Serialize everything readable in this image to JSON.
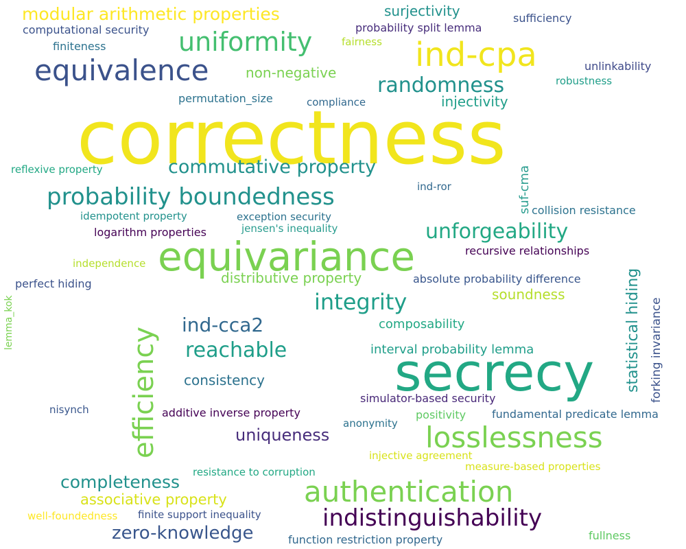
{
  "words": [
    {
      "text": "correctness",
      "color": "#f1e51d"
    },
    {
      "text": "secrecy",
      "color": "#22a884"
    },
    {
      "text": "equivariance",
      "color": "#7ad151"
    },
    {
      "text": "ind-cpa",
      "color": "#f1e51d"
    },
    {
      "text": "equivalence",
      "color": "#3b528b"
    },
    {
      "text": "authentication",
      "color": "#7ad151"
    },
    {
      "text": "uniformity",
      "color": "#44bf70"
    },
    {
      "text": "losslessness",
      "color": "#7ad151"
    },
    {
      "text": "efficiency",
      "color": "#7ad151"
    },
    {
      "text": "probability boundedness",
      "color": "#21918c"
    },
    {
      "text": "indistinguishability",
      "color": "#440154"
    },
    {
      "text": "modular arithmetic properties",
      "color": "#fde725"
    },
    {
      "text": "commutative property",
      "color": "#21918c"
    },
    {
      "text": "integrity",
      "color": "#1f9e89"
    },
    {
      "text": "randomness",
      "color": "#21918c"
    },
    {
      "text": "unforgeability",
      "color": "#22a884"
    },
    {
      "text": "reachable",
      "color": "#1f9e89"
    },
    {
      "text": "ind-cca2",
      "color": "#31688e"
    },
    {
      "text": "zero-knowledge",
      "color": "#39568c"
    },
    {
      "text": "completeness",
      "color": "#21918c"
    },
    {
      "text": "uniqueness",
      "color": "#472d7b"
    },
    {
      "text": "statistical hiding",
      "color": "#21918c"
    },
    {
      "text": "non-negative",
      "color": "#7ad151"
    },
    {
      "text": "associative property",
      "color": "#d8e219"
    },
    {
      "text": "consistency",
      "color": "#2c728e"
    },
    {
      "text": "distributive property",
      "color": "#7ad151"
    },
    {
      "text": "surjectivity",
      "color": "#21918c"
    },
    {
      "text": "injectivity",
      "color": "#1f9e89"
    },
    {
      "text": "soundness",
      "color": "#b5de2b"
    },
    {
      "text": "composability",
      "color": "#22a884"
    },
    {
      "text": "interval probability lemma",
      "color": "#1f9e89"
    },
    {
      "text": "suf-cma",
      "color": "#2a9d8f"
    },
    {
      "text": "forking invariance",
      "color": "#3b528b"
    },
    {
      "text": "positivity",
      "color": "#5ec962"
    },
    {
      "text": "simulator-based security",
      "color": "#482878"
    },
    {
      "text": "additive inverse property",
      "color": "#440154"
    },
    {
      "text": "fundamental predicate lemma",
      "color": "#31688e"
    },
    {
      "text": "recursive relationships",
      "color": "#440154"
    },
    {
      "text": "absolute probability difference",
      "color": "#39568c"
    },
    {
      "text": "computational security",
      "color": "#3b528b"
    },
    {
      "text": "probability split lemma",
      "color": "#472d7b"
    },
    {
      "text": "sufficiency",
      "color": "#3b528b"
    },
    {
      "text": "finiteness",
      "color": "#2c728e"
    },
    {
      "text": "fairness",
      "color": "#b5de2b"
    },
    {
      "text": "unlinkability",
      "color": "#3e4989"
    },
    {
      "text": "robustness",
      "color": "#1f9e89"
    },
    {
      "text": "permutation_size",
      "color": "#2c728e"
    },
    {
      "text": "compliance",
      "color": "#31688e"
    },
    {
      "text": "reflexive property",
      "color": "#22a884"
    },
    {
      "text": "ind-ror",
      "color": "#31688e"
    },
    {
      "text": "collision resistance",
      "color": "#2c728e"
    },
    {
      "text": "idempotent property",
      "color": "#21918c"
    },
    {
      "text": "exception security",
      "color": "#2c728e"
    },
    {
      "text": "jensen's inequality",
      "color": "#2a9d8f"
    },
    {
      "text": "logarithm properties",
      "color": "#440154"
    },
    {
      "text": "independence",
      "color": "#b5de2b"
    },
    {
      "text": "perfect hiding",
      "color": "#3b528b"
    },
    {
      "text": "lemma_kok",
      "color": "#7ad151"
    },
    {
      "text": "nisynch",
      "color": "#39568c"
    },
    {
      "text": "anonymity",
      "color": "#2c728e"
    },
    {
      "text": "injective agreement",
      "color": "#d8e219"
    },
    {
      "text": "measure-based properties",
      "color": "#d8e219"
    },
    {
      "text": "resistance to corruption",
      "color": "#22a884"
    },
    {
      "text": "well-foundedness",
      "color": "#fde725"
    },
    {
      "text": "finite support inequality",
      "color": "#3b528b"
    },
    {
      "text": "function restriction property",
      "color": "#31688e"
    },
    {
      "text": "fullness",
      "color": "#5ec962"
    }
  ]
}
